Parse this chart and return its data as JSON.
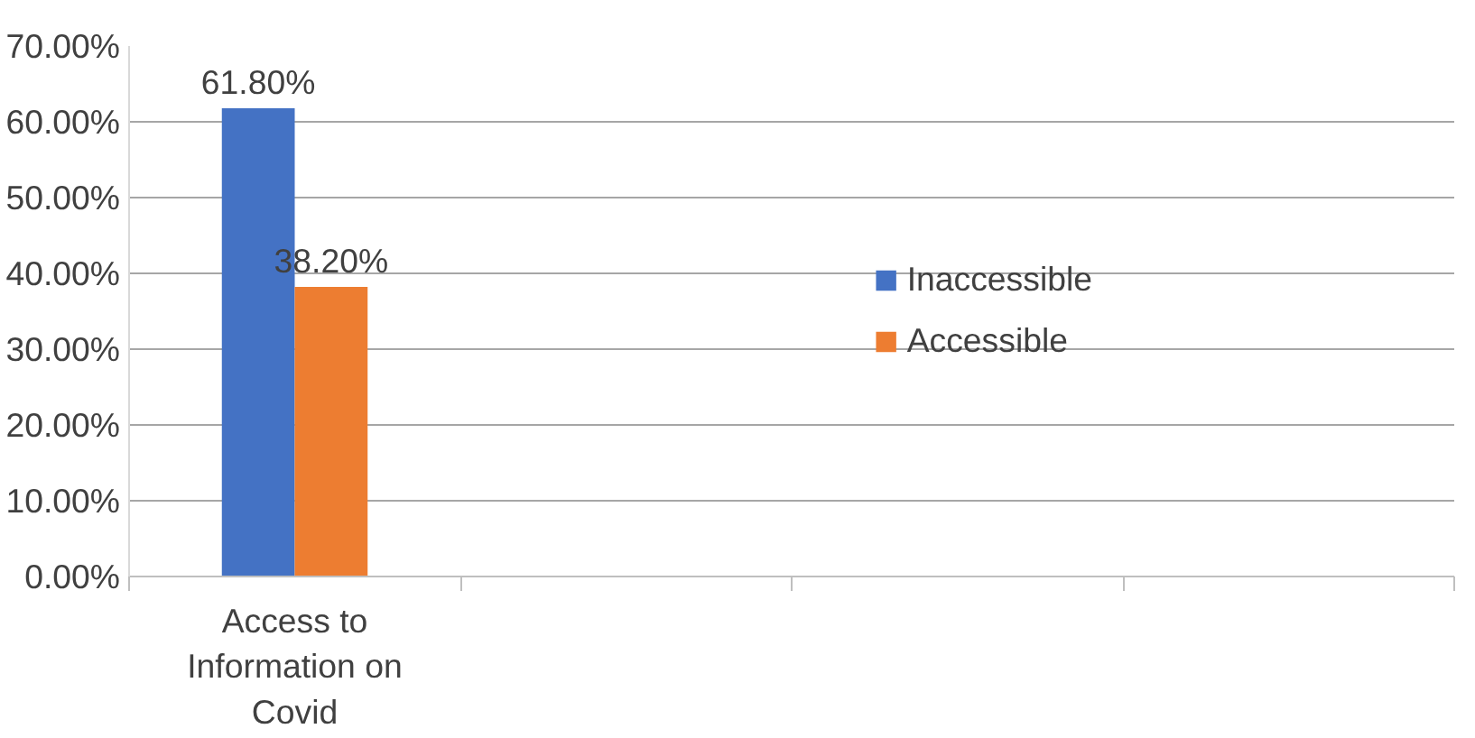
{
  "chart_data": {
    "type": "bar",
    "categories": [
      "Access to Information on Covid",
      null,
      null,
      null
    ],
    "series": [
      {
        "name": "Inaccessible",
        "color": "#4472c4",
        "values": [
          61.8,
          null,
          null,
          null
        ],
        "value_labels": [
          "61.80%",
          null,
          null,
          null
        ]
      },
      {
        "name": "Accessible",
        "color": "#ed7d31",
        "values": [
          38.2,
          null,
          null,
          null
        ],
        "value_labels": [
          "38.20%",
          null,
          null,
          null
        ]
      }
    ],
    "ylim": [
      0,
      70
    ],
    "yticks": [
      {
        "value": 0,
        "label": "0.00%"
      },
      {
        "value": 10,
        "label": "10.00%"
      },
      {
        "value": 20,
        "label": "20.00%"
      },
      {
        "value": 30,
        "label": "30.00%"
      },
      {
        "value": 40,
        "label": "40.00%"
      },
      {
        "value": 50,
        "label": "50.00%"
      },
      {
        "value": 60,
        "label": "60.00%"
      },
      {
        "value": 70,
        "label": "70.00%"
      }
    ],
    "grid": "y",
    "legend": "right"
  }
}
